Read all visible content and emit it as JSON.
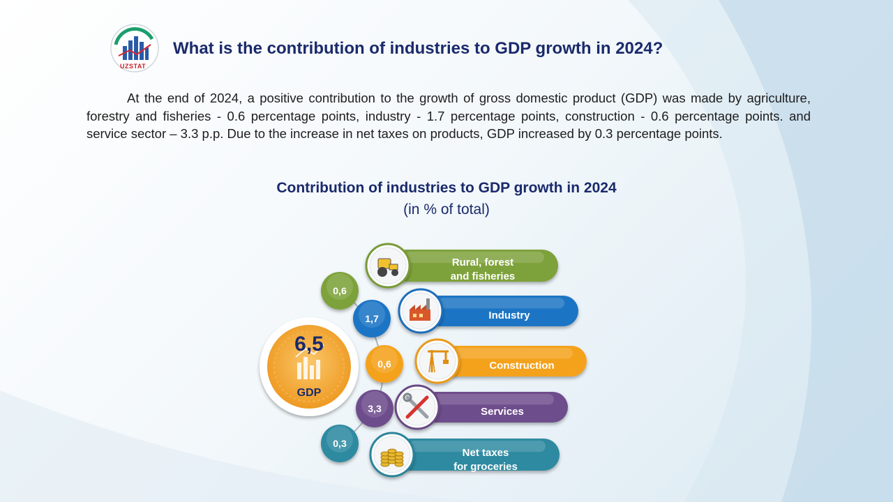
{
  "header": {
    "logo_text": "UZSTAT",
    "title": "What is the contribution of industries to GDP growth in 2024?"
  },
  "description": "At the end of 2024, a positive contribution to the growth of gross domestic product (GDP) was made by agriculture, forestry and fisheries - 0.6 percentage points, industry - 1.7 percentage points, construction - 0.6 percentage points. and service sector – 3.3 p.p. Due to the increase in net taxes on products, GDP increased by 0.3 percentage points.",
  "colors": {
    "agriculture": "#7ea23a",
    "industry": "#1f74c4",
    "construction": "#f4a21e",
    "services": "#6e4d8c",
    "taxes": "#2d8aa1",
    "total": "#f2a43a",
    "title": "#1a2a6b"
  },
  "chart_data": {
    "type": "bar",
    "title": "Contribution of industries to GDP growth in 2024",
    "subtitle": "(in % of total)",
    "total": {
      "label": "GDP",
      "value_label": "6,5",
      "value": 6.5
    },
    "categories_lines": [
      [
        "Rural, forest",
        "and fisheries"
      ],
      [
        "Industry"
      ],
      [
        "Construction"
      ],
      [
        "Services"
      ],
      [
        "Net taxes",
        "for groceries"
      ]
    ],
    "value_labels": [
      "0,6",
      "1,7",
      "0,6",
      "3,3",
      "0,3"
    ],
    "values": [
      0.6,
      1.7,
      0.6,
      3.3,
      0.3
    ],
    "icons": [
      "tractor-icon",
      "factory-icon",
      "crane-icon",
      "tools-icon",
      "coins-icon"
    ]
  }
}
